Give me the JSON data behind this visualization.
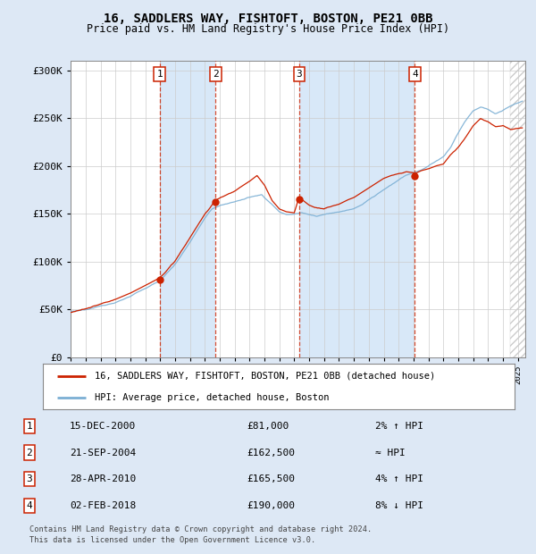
{
  "title": "16, SADDLERS WAY, FISHTOFT, BOSTON, PE21 0BB",
  "subtitle": "Price paid vs. HM Land Registry's House Price Index (HPI)",
  "legend_line1": "16, SADDLERS WAY, FISHTOFT, BOSTON, PE21 0BB (detached house)",
  "legend_line2": "HPI: Average price, detached house, Boston",
  "footer1": "Contains HM Land Registry data © Crown copyright and database right 2024.",
  "footer2": "This data is licensed under the Open Government Licence v3.0.",
  "transactions": [
    {
      "num": 1,
      "date_label": "15-DEC-2000",
      "price_label": "£81,000",
      "hpi_note": "2% ↑ HPI",
      "x_year": 2000.96,
      "price": 81000
    },
    {
      "num": 2,
      "date_label": "21-SEP-2004",
      "price_label": "£162,500",
      "hpi_note": "≈ HPI",
      "x_year": 2004.72,
      "price": 162500
    },
    {
      "num": 3,
      "date_label": "28-APR-2010",
      "price_label": "£165,500",
      "hpi_note": "4% ↑ HPI",
      "x_year": 2010.32,
      "price": 165500
    },
    {
      "num": 4,
      "date_label": "02-FEB-2018",
      "price_label": "£190,000",
      "hpi_note": "8% ↓ HPI",
      "x_year": 2018.09,
      "price": 190000
    }
  ],
  "hpi_color": "#7bafd4",
  "price_color": "#cc2200",
  "background_color": "#dde8f5",
  "plot_bg_color": "#ffffff",
  "shade_color": "#d8e8f8",
  "xmin": 1995.0,
  "xmax": 2025.5,
  "ymin": 0,
  "ymax": 310000,
  "yticks": [
    0,
    50000,
    100000,
    150000,
    200000,
    250000,
    300000
  ],
  "ytick_labels": [
    "£0",
    "£50K",
    "£100K",
    "£150K",
    "£200K",
    "£250K",
    "£300K"
  ]
}
